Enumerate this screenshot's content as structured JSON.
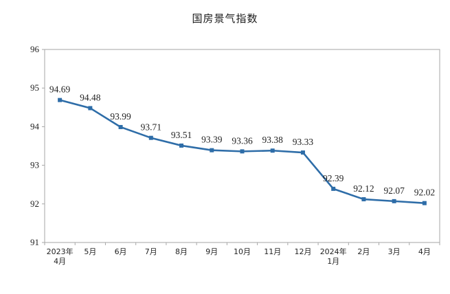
{
  "chart_data": {
    "type": "line",
    "title": "国房景气指数",
    "x_labels": [
      "2023年\n4月",
      "5月",
      "6月",
      "7月",
      "8月",
      "9月",
      "10月",
      "11月",
      "12月",
      "2024年\n1月",
      "2月",
      "3月",
      "4月"
    ],
    "series": [
      {
        "values": [
          94.69,
          94.48,
          93.99,
          93.71,
          93.51,
          93.39,
          93.36,
          93.38,
          93.33,
          92.39,
          92.12,
          92.07,
          92.02
        ]
      }
    ],
    "data_labels": [
      "94.69",
      "94.48",
      "93.99",
      "93.71",
      "93.51",
      "93.39",
      "93.36",
      "93.38",
      "93.33",
      "92.39",
      "92.12",
      "92.07",
      "92.02"
    ],
    "yticks": [
      91,
      92,
      93,
      94,
      95,
      96
    ],
    "ylim": [
      91,
      96
    ],
    "grid": false,
    "legend": "none",
    "line_color": "#2E6DA8",
    "axis_color": "#a6a6a6"
  }
}
